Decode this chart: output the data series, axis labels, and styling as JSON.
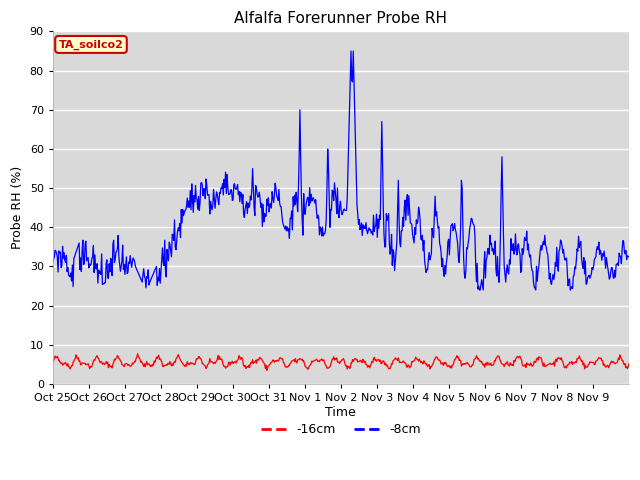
{
  "title": "Alfalfa Forerunner Probe RH",
  "ylabel": "Probe RH (%)",
  "xlabel": "Time",
  "ylim": [
    0,
    90
  ],
  "yticks": [
    0,
    10,
    20,
    30,
    40,
    50,
    60,
    70,
    80,
    90
  ],
  "xtick_labels": [
    "Oct 25",
    "Oct 26",
    "Oct 27",
    "Oct 28",
    "Oct 29",
    "Oct 30",
    "Oct 31",
    "Nov 1",
    "Nov 2",
    "Nov 3",
    "Nov 4",
    "Nov 5",
    "Nov 6",
    "Nov 7",
    "Nov 8",
    "Nov 9"
  ],
  "annotation_label": "TA_soilco2",
  "legend_labels": [
    "-16cm",
    "-8cm"
  ],
  "legend_colors": [
    "#ff0000",
    "#0000ff"
  ],
  "line_color_red": "#ff0000",
  "line_color_blue": "#0000ff",
  "bg_color": "#d9d9d9",
  "fig_color": "#ffffff",
  "title_fontsize": 11,
  "axis_label_fontsize": 9,
  "tick_fontsize": 8
}
